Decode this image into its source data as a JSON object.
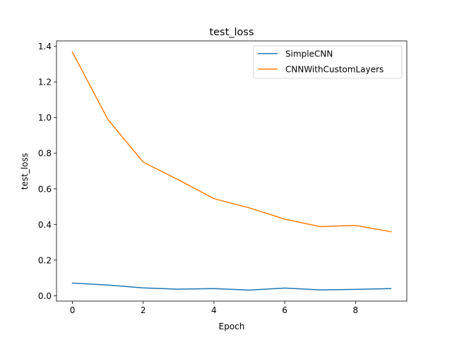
{
  "chart_data": {
    "type": "line",
    "title": "test_loss",
    "xlabel": "Epoch",
    "ylabel": "test_loss",
    "x": [
      0,
      1,
      2,
      3,
      4,
      5,
      6,
      7,
      8,
      9
    ],
    "xlim": [
      -0.45,
      9.45
    ],
    "ylim": [
      -0.03,
      1.43
    ],
    "xticks": [
      "0",
      "2",
      "4",
      "6",
      "8"
    ],
    "yticks": [
      "0.0",
      "0.2",
      "0.4",
      "0.6",
      "0.8",
      "1.0",
      "1.2",
      "1.4"
    ],
    "grid": false,
    "legend_position": "top-right",
    "series": [
      {
        "name": "SimpleCNN",
        "color": "#1f77b4",
        "values": [
          0.071,
          0.06,
          0.044,
          0.037,
          0.04,
          0.032,
          0.043,
          0.033,
          0.036,
          0.04
        ]
      },
      {
        "name": "CNNWithCustomLayers",
        "color": "#ff7f0e",
        "values": [
          1.367,
          0.99,
          0.75,
          0.65,
          0.545,
          0.493,
          0.43,
          0.388,
          0.395,
          0.359
        ]
      }
    ]
  }
}
